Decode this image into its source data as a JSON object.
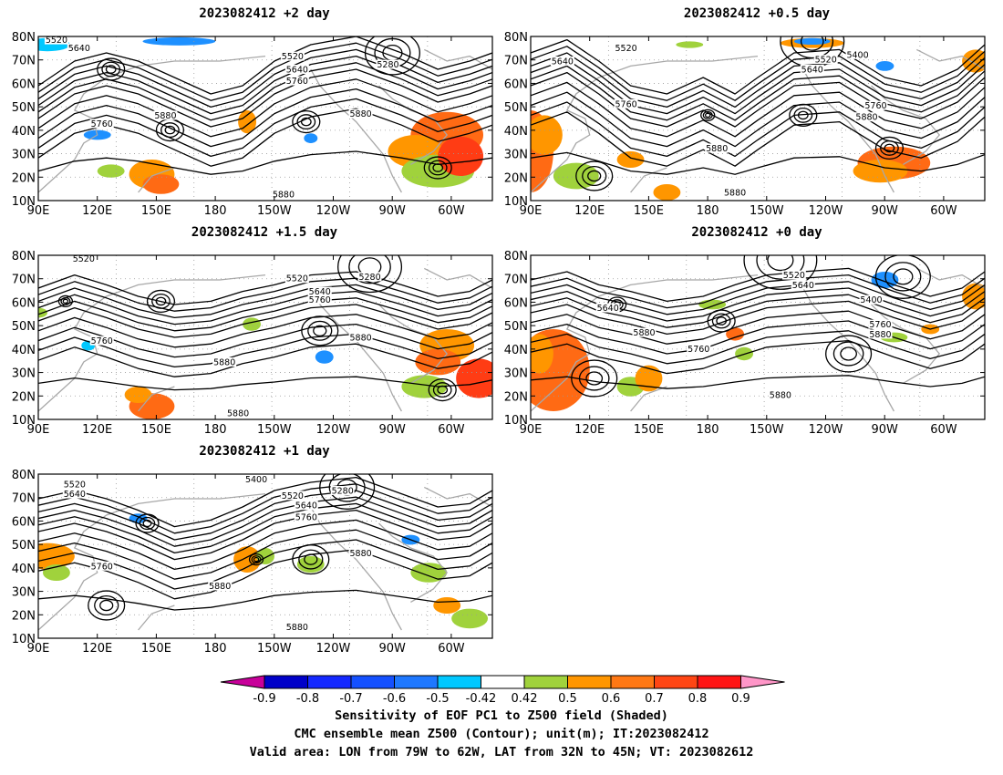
{
  "panels": [
    {
      "title": "2023082412 +2 day",
      "contour_labels": [
        "5520",
        "5640",
        "5520",
        "5640",
        "5760",
        "5280",
        "5760",
        "5880",
        "5880",
        "5880"
      ]
    },
    {
      "title": "2023082412 +0.5 day",
      "contour_labels": [
        "5520",
        "5640",
        "5400",
        "5520",
        "5640",
        "5760",
        "5760",
        "5880",
        "5880",
        "5880"
      ]
    },
    {
      "title": "2023082412 +1.5 day",
      "contour_labels": [
        "5520",
        "5520",
        "5280",
        "5640",
        "5760",
        "5760",
        "5880",
        "5880",
        "5880"
      ]
    },
    {
      "title": "2023082412 +0 day",
      "contour_labels": [
        "5520",
        "5640",
        "5400",
        "5640",
        "5760",
        "5880",
        "5760",
        "5880",
        "5880"
      ]
    },
    {
      "title": "2023082412 +1 day",
      "contour_labels": [
        "5520",
        "5640",
        "5400",
        "5280",
        "5520",
        "5640",
        "5760",
        "5760",
        "5880",
        "5880",
        "5880"
      ]
    }
  ],
  "axes": {
    "y_ticks": [
      "80N",
      "70N",
      "60N",
      "50N",
      "40N",
      "30N",
      "20N",
      "10N"
    ],
    "x_ticks": [
      "90E",
      "120E",
      "150E",
      "180",
      "150W",
      "120W",
      "90W",
      "60W"
    ]
  },
  "colorbar": {
    "labels": [
      "-0.9",
      "-0.8",
      "-0.7",
      "-0.6",
      "-0.5",
      "-0.42",
      "0.42",
      "0.5",
      "0.6",
      "0.7",
      "0.8",
      "0.9"
    ],
    "colors": [
      "#c8009a",
      "#0000c8",
      "#1428ff",
      "#1450ff",
      "#1e78ff",
      "#00c8ff",
      "#ffffff",
      "#a0d23c",
      "#ff9600",
      "#ff7814",
      "#ff4614",
      "#ff1414",
      "#ff96c8"
    ]
  },
  "caption": {
    "line1": "Sensitivity of EOF PC1 to Z500 field (Shaded)",
    "line2": "CMC ensemble mean Z500 (Contour); unit(m); IT:2023082412",
    "line3": "Valid area: LON from 79W to 62W, LAT from 32N to 45N; VT: 2023082612"
  }
}
